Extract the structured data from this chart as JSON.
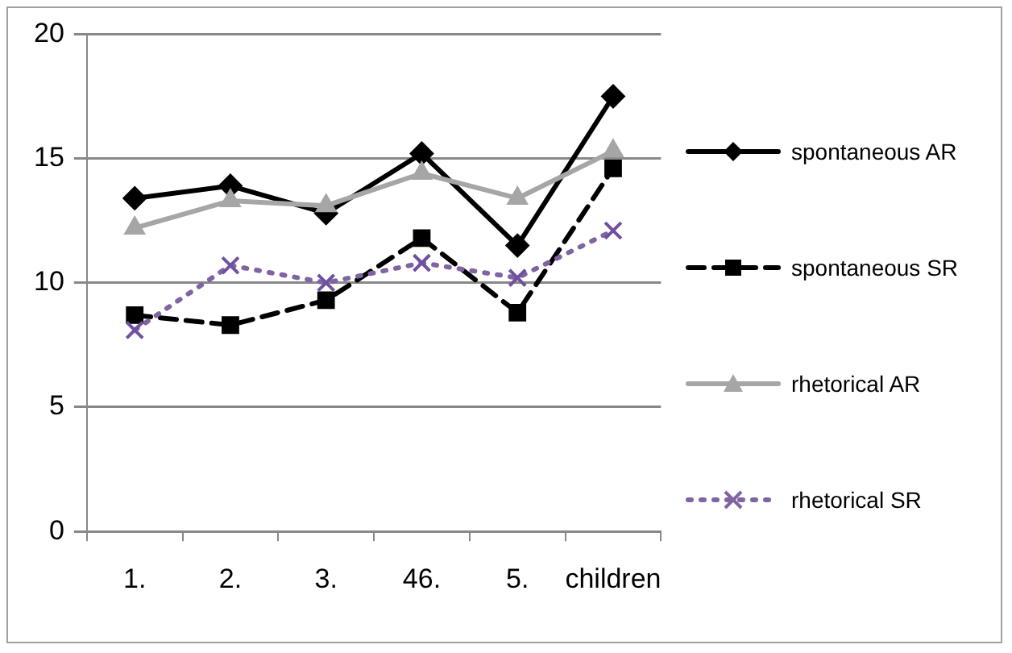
{
  "chart_data": {
    "type": "line",
    "categories": [
      "1.",
      "2.",
      "3.",
      "46.",
      "5.",
      "children"
    ],
    "series": [
      {
        "name": "spontaneous AR",
        "color": "#000000",
        "marker": "diamond",
        "line_style": "solid",
        "values": [
          13.4,
          13.9,
          12.8,
          15.2,
          11.5,
          17.5
        ]
      },
      {
        "name": "spontaneous SR",
        "color": "#000000",
        "marker": "square",
        "line_style": "dashed",
        "values": [
          8.7,
          8.3,
          9.3,
          11.8,
          8.8,
          14.6
        ]
      },
      {
        "name": "rhetorical AR",
        "color": "#a6a6a6",
        "marker": "triangle",
        "line_style": "solid",
        "values": [
          12.2,
          13.3,
          13.1,
          14.4,
          13.4,
          15.3
        ]
      },
      {
        "name": "rhetorical SR",
        "color": "#8064a2",
        "marker": "cross",
        "line_style": "dotted",
        "values": [
          8.1,
          10.7,
          10.0,
          10.8,
          10.2,
          12.1
        ]
      }
    ],
    "ylim": [
      0,
      20
    ],
    "yticks": [
      0,
      5,
      10,
      15,
      20
    ],
    "grid": "y",
    "legend": "right"
  }
}
